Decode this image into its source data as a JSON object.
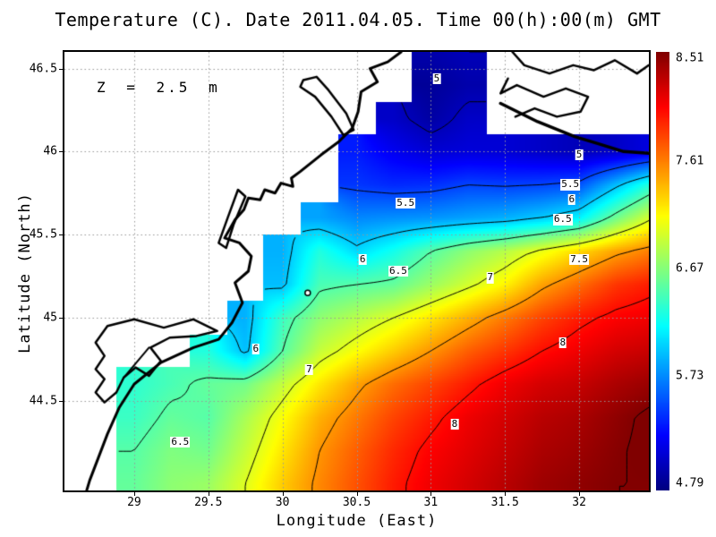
{
  "title": "Temperature (C). Date 2011.04.05. Time 00(h):00(m) GMT",
  "annotation": "Z = 2.5 m",
  "x_axis": {
    "label": "Longitude (East)"
  },
  "y_axis": {
    "label": "Latitude (North)"
  },
  "chart_data": {
    "type": "heatmap",
    "title": "Temperature (C). Date 2011.04.05. Time 00(h):00(m) GMT",
    "xlabel": "Longitude (East)",
    "ylabel": "Latitude (North)",
    "depth_annotation": "Z = 2.5 m",
    "lon_range": [
      28.53,
      32.47
    ],
    "lat_range": [
      43.96,
      46.6
    ],
    "value_range": [
      4.79,
      8.51
    ],
    "colormap": "jet",
    "grid_on": true,
    "grid_color": "#999999",
    "x_ticks": [
      {
        "label": "29",
        "value": 29
      },
      {
        "label": "29.5",
        "value": 29.5
      },
      {
        "label": "30",
        "value": 30
      },
      {
        "label": "30.5",
        "value": 30.5
      },
      {
        "label": "31",
        "value": 31
      },
      {
        "label": "31.5",
        "value": 31.5
      },
      {
        "label": "32",
        "value": 32
      }
    ],
    "y_ticks": [
      {
        "label": "46.5",
        "value": 46.5
      },
      {
        "label": "46",
        "value": 46
      },
      {
        "label": "45.5",
        "value": 45.5
      },
      {
        "label": "45",
        "value": 45
      },
      {
        "label": "44.5",
        "value": 44.5
      }
    ],
    "colorbar_ticks": [
      {
        "label": "8.51",
        "value": 8.51
      },
      {
        "label": "7.61",
        "value": 7.61
      },
      {
        "label": "6.67",
        "value": 6.67
      },
      {
        "label": "5.73",
        "value": 5.73
      },
      {
        "label": "4.79",
        "value": 4.79
      }
    ],
    "contour_levels": [
      5,
      5.5,
      6,
      6.5,
      7,
      7.5,
      8,
      8.5
    ],
    "contour_labels": [
      {
        "text": "5",
        "lon": 31.04,
        "lat": 46.44
      },
      {
        "text": "5",
        "lon": 32.0,
        "lat": 45.98
      },
      {
        "text": "5.5",
        "lon": 30.83,
        "lat": 45.69
      },
      {
        "text": "5.5",
        "lon": 31.94,
        "lat": 45.8
      },
      {
        "text": "6",
        "lon": 31.95,
        "lat": 45.71
      },
      {
        "text": "6",
        "lon": 30.54,
        "lat": 45.35
      },
      {
        "text": "6",
        "lon": 29.82,
        "lat": 44.81
      },
      {
        "text": "6.5",
        "lon": 31.89,
        "lat": 45.59
      },
      {
        "text": "6.5",
        "lon": 30.78,
        "lat": 45.28
      },
      {
        "text": "6.5",
        "lon": 29.31,
        "lat": 44.25
      },
      {
        "text": "7",
        "lon": 31.4,
        "lat": 45.24
      },
      {
        "text": "7",
        "lon": 30.18,
        "lat": 44.69
      },
      {
        "text": "7.5",
        "lon": 32.0,
        "lat": 45.35
      },
      {
        "text": "8",
        "lon": 31.89,
        "lat": 44.85
      },
      {
        "text": "8",
        "lon": 31.16,
        "lat": 44.36
      }
    ],
    "spot_marker": {
      "lon": 30.17,
      "lat": 45.15
    },
    "grid": {
      "lons": [
        28.5,
        28.75,
        29,
        29.25,
        29.5,
        29.75,
        30,
        30.25,
        30.5,
        30.75,
        31,
        31.25,
        31.5,
        31.75,
        32,
        32.25,
        32.5
      ],
      "lats": [
        46.6,
        46.4,
        46.2,
        46.0,
        45.8,
        45.6,
        45.4,
        45.2,
        45.0,
        44.8,
        44.6,
        44.4,
        44.2,
        44.0
      ],
      "values": [
        [
          null,
          null,
          null,
          null,
          null,
          null,
          null,
          null,
          null,
          null,
          4.95,
          5.0,
          null,
          null,
          null,
          null,
          null
        ],
        [
          null,
          null,
          null,
          null,
          null,
          null,
          null,
          null,
          null,
          null,
          4.88,
          4.95,
          null,
          null,
          null,
          null,
          null
        ],
        [
          null,
          null,
          null,
          null,
          null,
          null,
          null,
          null,
          null,
          5.05,
          4.92,
          5.05,
          null,
          null,
          null,
          null,
          null
        ],
        [
          null,
          null,
          null,
          null,
          null,
          null,
          null,
          null,
          5.35,
          5.2,
          5.1,
          5.12,
          5.1,
          5.05,
          5.0,
          5.05,
          5.15
        ],
        [
          null,
          null,
          null,
          null,
          null,
          null,
          null,
          null,
          5.45,
          5.4,
          5.42,
          5.5,
          5.48,
          5.5,
          5.55,
          5.95,
          6.35
        ],
        [
          null,
          null,
          null,
          null,
          null,
          null,
          null,
          5.85,
          5.75,
          5.78,
          5.8,
          5.85,
          5.9,
          6.0,
          6.15,
          6.6,
          7.0
        ],
        [
          null,
          null,
          null,
          null,
          null,
          null,
          5.9,
          6.3,
          6.05,
          6.25,
          6.5,
          6.7,
          6.85,
          7.05,
          7.25,
          7.45,
          7.6
        ],
        [
          null,
          null,
          null,
          null,
          null,
          null,
          5.95,
          6.45,
          6.5,
          6.55,
          6.75,
          6.95,
          7.15,
          7.45,
          7.65,
          7.85,
          7.95
        ],
        [
          null,
          null,
          null,
          null,
          null,
          5.9,
          6.4,
          6.7,
          6.85,
          7.0,
          7.2,
          7.4,
          7.6,
          7.8,
          7.95,
          8.05,
          8.1
        ],
        [
          null,
          null,
          null,
          null,
          6.3,
          5.95,
          6.5,
          6.9,
          7.1,
          7.3,
          7.5,
          7.7,
          7.85,
          8.0,
          8.1,
          8.2,
          8.25
        ],
        [
          null,
          null,
          6.35,
          6.45,
          6.55,
          6.6,
          6.9,
          7.2,
          7.45,
          7.65,
          7.8,
          7.95,
          8.1,
          8.2,
          8.25,
          8.35,
          8.42
        ],
        [
          null,
          null,
          6.4,
          6.55,
          6.5,
          6.8,
          7.1,
          7.4,
          7.6,
          7.8,
          7.95,
          8.1,
          8.2,
          8.3,
          8.35,
          8.45,
          8.55
        ],
        [
          null,
          null,
          6.5,
          6.65,
          6.6,
          6.9,
          7.2,
          7.5,
          7.7,
          7.9,
          8.05,
          8.15,
          8.25,
          8.35,
          8.4,
          8.48,
          8.55
        ],
        [
          null,
          null,
          6.55,
          6.7,
          6.75,
          7.0,
          7.3,
          7.55,
          7.75,
          7.95,
          8.1,
          8.2,
          8.3,
          8.4,
          8.45,
          8.5,
          8.5
        ]
      ]
    },
    "coastlines": [
      {
        "name": "mainland-coast",
        "width": 3,
        "closed": false,
        "points": [
          [
            30.8,
            46.6
          ],
          [
            30.71,
            46.54
          ],
          [
            30.59,
            46.5
          ],
          [
            30.64,
            46.42
          ],
          [
            30.53,
            46.36
          ],
          [
            30.51,
            46.24
          ],
          [
            30.47,
            46.14
          ],
          [
            30.38,
            46.06
          ],
          [
            30.26,
            45.98
          ],
          [
            30.12,
            45.88
          ],
          [
            30.06,
            45.84
          ],
          [
            30.07,
            45.79
          ],
          [
            29.99,
            45.81
          ],
          [
            29.95,
            45.75
          ],
          [
            29.88,
            45.77
          ],
          [
            29.85,
            45.71
          ],
          [
            29.77,
            45.72
          ],
          [
            29.74,
            45.65
          ],
          [
            29.68,
            45.59
          ],
          [
            29.61,
            45.48
          ],
          [
            29.71,
            45.45
          ],
          [
            29.79,
            45.37
          ],
          [
            29.77,
            45.28
          ],
          [
            29.68,
            45.21
          ],
          [
            29.73,
            45.09
          ],
          [
            29.66,
            44.97
          ],
          [
            29.57,
            44.87
          ],
          [
            29.4,
            44.82
          ],
          [
            29.18,
            44.73
          ],
          [
            29.0,
            44.6
          ],
          [
            28.9,
            44.46
          ],
          [
            28.82,
            44.3
          ],
          [
            28.76,
            44.16
          ],
          [
            28.7,
            44.02
          ],
          [
            28.68,
            43.96
          ]
        ]
      },
      {
        "name": "dniester-liman",
        "width": 2.5,
        "closed": true,
        "points": [
          [
            30.14,
            46.43
          ],
          [
            30.23,
            46.45
          ],
          [
            30.31,
            46.37
          ],
          [
            30.43,
            46.23
          ],
          [
            30.48,
            46.13
          ],
          [
            30.41,
            46.1
          ],
          [
            30.33,
            46.21
          ],
          [
            30.22,
            46.33
          ],
          [
            30.12,
            46.39
          ]
        ]
      },
      {
        "name": "sasyk-lagoon",
        "width": 2.5,
        "closed": true,
        "points": [
          [
            29.57,
            45.45
          ],
          [
            29.63,
            45.6
          ],
          [
            29.7,
            45.77
          ],
          [
            29.75,
            45.73
          ],
          [
            29.67,
            45.56
          ],
          [
            29.62,
            45.42
          ]
        ]
      },
      {
        "name": "razelm-lagoon",
        "width": 2.5,
        "closed": true,
        "points": [
          [
            29.56,
            44.92
          ],
          [
            29.4,
            44.99
          ],
          [
            29.2,
            44.94
          ],
          [
            29.0,
            44.99
          ],
          [
            28.82,
            44.95
          ],
          [
            28.74,
            44.85
          ],
          [
            28.8,
            44.77
          ],
          [
            28.74,
            44.69
          ],
          [
            28.8,
            44.63
          ],
          [
            28.74,
            44.55
          ],
          [
            28.8,
            44.49
          ],
          [
            28.88,
            44.55
          ],
          [
            28.93,
            44.64
          ],
          [
            29.01,
            44.7
          ],
          [
            29.1,
            44.65
          ],
          [
            29.18,
            44.74
          ],
          [
            29.11,
            44.82
          ],
          [
            29.24,
            44.88
          ],
          [
            29.42,
            44.89
          ]
        ]
      },
      {
        "name": "razelm-divider",
        "width": 2,
        "closed": false,
        "points": [
          [
            28.93,
            44.64
          ],
          [
            29.1,
            44.82
          ]
        ]
      },
      {
        "name": "spit-upper",
        "width": 2.5,
        "closed": false,
        "points": [
          [
            31.55,
            46.6
          ],
          [
            31.63,
            46.52
          ],
          [
            31.8,
            46.47
          ],
          [
            31.96,
            46.52
          ],
          [
            32.1,
            46.49
          ],
          [
            32.24,
            46.55
          ],
          [
            32.39,
            46.47
          ],
          [
            32.47,
            46.52
          ]
        ]
      },
      {
        "name": "spit-middle",
        "width": 2.5,
        "closed": false,
        "points": [
          [
            31.52,
            46.44
          ],
          [
            31.47,
            46.35
          ],
          [
            31.58,
            46.4
          ],
          [
            31.76,
            46.33
          ],
          [
            31.91,
            46.38
          ],
          [
            32.06,
            46.33
          ],
          [
            32.01,
            46.24
          ],
          [
            31.85,
            46.21
          ],
          [
            31.7,
            46.26
          ],
          [
            31.57,
            46.21
          ]
        ]
      },
      {
        "name": "tendra-spit",
        "width": 3.5,
        "closed": false,
        "points": [
          [
            31.47,
            46.29
          ],
          [
            31.72,
            46.18
          ],
          [
            31.97,
            46.09
          ],
          [
            32.12,
            46.05
          ],
          [
            32.3,
            46.0
          ],
          [
            32.47,
            45.99
          ]
        ]
      }
    ]
  }
}
